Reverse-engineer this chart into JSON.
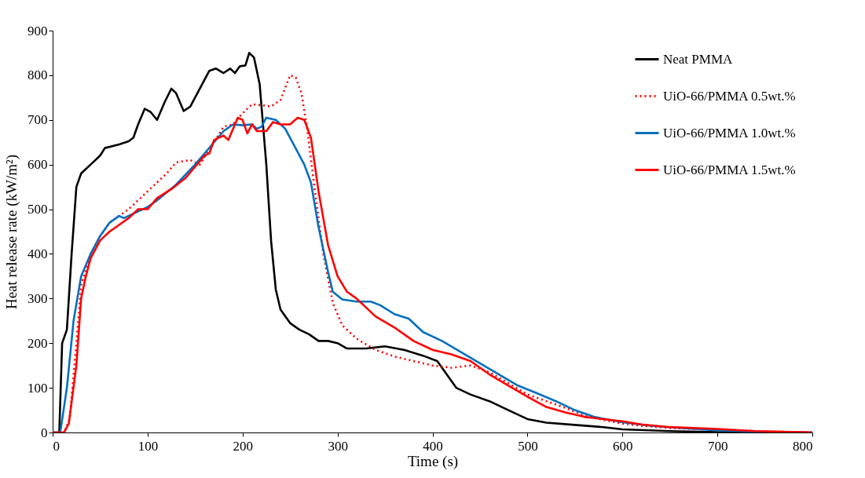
{
  "chart_data": {
    "type": "line",
    "xlabel": "Time (s)",
    "ylabel": "Heat release rate (kW/m²)",
    "xlim": [
      0,
      800
    ],
    "xticks": [
      0,
      100,
      200,
      300,
      400,
      500,
      600,
      700,
      800
    ],
    "ylim": [
      0,
      900
    ],
    "yticks": [
      0,
      100,
      200,
      300,
      400,
      500,
      600,
      700,
      800,
      900
    ],
    "grid": false,
    "legend": "top right",
    "marker": "none",
    "series": [
      {
        "name": "Neat PMMA",
        "color": "#000000",
        "line_style": "solid",
        "x": [
          0,
          7,
          10,
          15,
          20,
          25,
          30,
          40,
          50,
          55,
          70,
          80,
          85,
          90,
          97,
          103,
          110,
          118,
          125,
          130,
          138,
          145,
          155,
          165,
          172,
          180,
          187,
          192,
          197,
          203,
          207,
          212,
          218,
          225,
          230,
          235,
          240,
          250,
          260,
          270,
          280,
          290,
          300,
          310,
          330,
          350,
          370,
          390,
          405,
          415,
          425,
          440,
          460,
          480,
          500,
          520,
          550,
          580,
          600,
          650,
          700,
          800
        ],
        "values": [
          0,
          0,
          200,
          230,
          400,
          550,
          580,
          600,
          620,
          637,
          645,
          652,
          660,
          690,
          725,
          718,
          700,
          740,
          770,
          760,
          720,
          730,
          770,
          810,
          815,
          805,
          815,
          805,
          820,
          822,
          850,
          840,
          780,
          600,
          430,
          320,
          275,
          245,
          230,
          220,
          205,
          205,
          200,
          188,
          188,
          193,
          185,
          172,
          160,
          130,
          100,
          85,
          70,
          50,
          30,
          22,
          17,
          12,
          7,
          3,
          1,
          0
        ]
      },
      {
        "name": "UiO-66/PMMA 0.5wt.%",
        "color": "#ff0000",
        "line_style": "dotted",
        "x": [
          0,
          12,
          18,
          25,
          30,
          40,
          50,
          60,
          80,
          100,
          120,
          130,
          145,
          155,
          170,
          180,
          190,
          200,
          210,
          220,
          230,
          240,
          250,
          256,
          262,
          268,
          275,
          285,
          295,
          305,
          320,
          340,
          360,
          380,
          400,
          420,
          440,
          460,
          480,
          500,
          520,
          540,
          560,
          580,
          600,
          620,
          650,
          700,
          740,
          800
        ],
        "values": [
          0,
          0,
          30,
          200,
          330,
          400,
          440,
          470,
          500,
          540,
          580,
          605,
          610,
          600,
          650,
          685,
          690,
          715,
          735,
          733,
          730,
          745,
          800,
          795,
          760,
          680,
          560,
          400,
          290,
          240,
          210,
          185,
          170,
          160,
          150,
          145,
          150,
          135,
          110,
          85,
          70,
          55,
          38,
          28,
          20,
          15,
          10,
          6,
          3,
          0
        ]
      },
      {
        "name": "UiO-66/PMMA 1.0wt.%",
        "color": "#0070c0",
        "line_style": "solid",
        "x": [
          0,
          8,
          15,
          22,
          30,
          40,
          50,
          60,
          70,
          75,
          90,
          100,
          110,
          130,
          150,
          170,
          180,
          190,
          200,
          210,
          215,
          220,
          225,
          235,
          245,
          255,
          265,
          272,
          280,
          290,
          295,
          305,
          320,
          335,
          345,
          360,
          375,
          390,
          410,
          430,
          450,
          470,
          490,
          510,
          530,
          550,
          570,
          600,
          630,
          660,
          700,
          740,
          800
        ],
        "values": [
          0,
          0,
          100,
          250,
          350,
          400,
          440,
          470,
          485,
          480,
          495,
          505,
          520,
          555,
          600,
          650,
          675,
          690,
          688,
          690,
          680,
          685,
          705,
          700,
          680,
          640,
          600,
          560,
          460,
          360,
          315,
          298,
          293,
          293,
          285,
          265,
          255,
          225,
          205,
          180,
          155,
          130,
          105,
          88,
          70,
          50,
          35,
          23,
          15,
          10,
          5,
          2,
          0
        ]
      },
      {
        "name": "UiO-66/PMMA 1.5wt.%",
        "color": "#ff0000",
        "line_style": "solid",
        "x": [
          0,
          12,
          17,
          25,
          30,
          35,
          40,
          50,
          60,
          70,
          80,
          90,
          100,
          110,
          125,
          140,
          150,
          160,
          165,
          170,
          180,
          185,
          195,
          200,
          205,
          210,
          215,
          225,
          232,
          240,
          250,
          258,
          265,
          272,
          280,
          290,
          300,
          310,
          320,
          340,
          360,
          380,
          400,
          420,
          440,
          460,
          480,
          500,
          520,
          540,
          560,
          580,
          600,
          620,
          650,
          700,
          740,
          800
        ],
        "values": [
          0,
          0,
          20,
          150,
          300,
          350,
          390,
          430,
          450,
          465,
          480,
          500,
          500,
          525,
          545,
          570,
          595,
          620,
          625,
          655,
          665,
          655,
          705,
          700,
          670,
          690,
          675,
          675,
          695,
          690,
          690,
          705,
          700,
          660,
          540,
          420,
          350,
          315,
          300,
          260,
          235,
          205,
          185,
          175,
          160,
          130,
          105,
          80,
          57,
          45,
          35,
          30,
          25,
          18,
          12,
          8,
          3,
          0
        ]
      }
    ]
  }
}
